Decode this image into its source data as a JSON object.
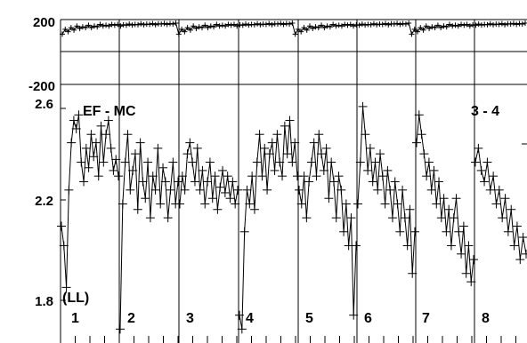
{
  "chart_data": [
    {
      "type": "line",
      "panel": "top",
      "y_ticks": [
        "200",
        "-200"
      ],
      "ylim": [
        -200,
        200
      ],
      "grid_vertical": true,
      "series": [
        {
          "marker": "+",
          "values": [
            110,
            140,
            125,
            150,
            135,
            160,
            145,
            155,
            150,
            165,
            150,
            160,
            155,
            170,
            160,
            165,
            160,
            170,
            165,
            170,
            160,
            168,
            165,
            172,
            166,
            170,
            168,
            174,
            168,
            172,
            170,
            175,
            168,
            174,
            172,
            176,
            170,
            175,
            172,
            178
          ]
        }
      ]
    },
    {
      "type": "line",
      "panel": "bottom",
      "title": "EF - MC",
      "annotation": "3 - 4",
      "corner_label": "(LL)",
      "y_ticks": [
        "2.6",
        "2.2",
        "1.8"
      ],
      "ylim": [
        1.7,
        2.62
      ],
      "grid_vertical": true,
      "segments": [
        {
          "label": "1",
          "values": [
            2.12,
            2.05,
            1.9,
            2.25,
            2.42,
            2.5,
            2.47,
            2.52,
            2.35,
            2.28,
            2.4,
            2.33,
            2.45,
            2.37,
            2.42,
            2.3,
            2.48,
            2.35,
            2.45,
            2.5,
            2.4,
            2.32,
            2.36,
            2.3
          ]
        },
        {
          "label": "2",
          "values": [
            1.75,
            2.2,
            2.35,
            2.45,
            2.25,
            2.32,
            2.38,
            2.18,
            2.42,
            2.28,
            2.22,
            2.35,
            2.15,
            2.3,
            2.25,
            2.4,
            2.2,
            2.33,
            2.28,
            2.15,
            2.25,
            2.35,
            2.2,
            2.28
          ]
        },
        {
          "label": "3",
          "values": [
            2.2,
            2.3,
            2.25,
            2.38,
            2.42,
            2.35,
            2.28,
            2.4,
            2.25,
            2.32,
            2.2,
            2.28,
            2.35,
            2.22,
            2.3,
            2.18,
            2.26,
            2.32,
            2.24,
            2.3,
            2.22,
            2.28,
            2.2,
            2.25
          ]
        },
        {
          "label": "4",
          "values": [
            1.8,
            1.75,
            2.1,
            2.25,
            2.2,
            2.3,
            2.18,
            2.35,
            2.45,
            2.3,
            2.4,
            2.25,
            2.38,
            2.42,
            2.32,
            2.45,
            2.35,
            2.3,
            2.48,
            2.38,
            2.5,
            2.35,
            2.42,
            2.3
          ]
        },
        {
          "label": "5",
          "values": [
            2.25,
            2.2,
            2.3,
            2.15,
            2.28,
            2.35,
            2.42,
            2.3,
            2.45,
            2.38,
            2.32,
            2.4,
            2.22,
            2.35,
            2.28,
            2.15,
            2.3,
            2.25,
            2.1,
            2.2,
            2.05,
            2.15,
            1.8,
            2.05
          ]
        },
        {
          "label": "6",
          "values": [
            2.2,
            2.35,
            2.55,
            2.45,
            2.32,
            2.4,
            2.28,
            2.35,
            2.25,
            2.38,
            2.3,
            2.2,
            2.32,
            2.25,
            2.15,
            2.28,
            2.2,
            2.1,
            2.25,
            2.15,
            2.05,
            2.18,
            1.95,
            2.1
          ]
        },
        {
          "label": "7",
          "values": [
            2.42,
            2.52,
            2.45,
            2.38,
            2.3,
            2.35,
            2.25,
            2.32,
            2.2,
            2.28,
            2.15,
            2.22,
            2.1,
            2.18,
            2.05,
            2.15,
            2.22,
            2.1,
            2.02,
            2.12,
            1.95,
            2.05,
            1.92,
            2.0
          ]
        },
        {
          "label": "8",
          "values": [
            2.35,
            2.4,
            2.32,
            2.28,
            2.35,
            2.25,
            2.3,
            2.2,
            2.25,
            2.15,
            2.22,
            2.1,
            2.18,
            2.05,
            2.12,
            2.0,
            2.08,
            2.02
          ]
        }
      ]
    }
  ]
}
